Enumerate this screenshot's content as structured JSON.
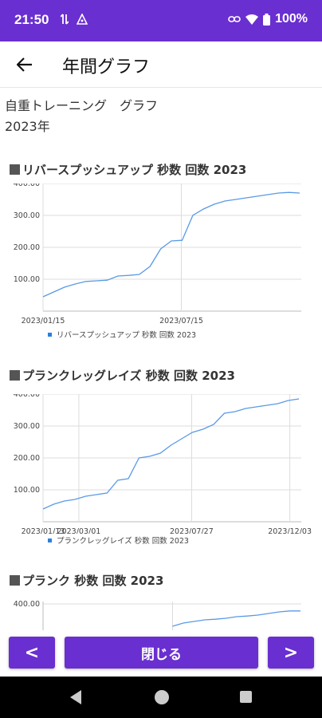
{
  "status": {
    "time": "21:50",
    "battery": "100%"
  },
  "app_bar": {
    "title": "年間グラフ"
  },
  "header": {
    "line1": "自重トレーニング　グラフ",
    "line2": "2023年"
  },
  "chart_data": [
    {
      "type": "line",
      "title": "リバースプッシュアップ 秒数 回数 2023",
      "series": [
        {
          "name": "リバースプッシュアップ 秒数 回数 2023",
          "x": [
            "2023/01/15",
            "2023/01/29",
            "2023/02/12",
            "2023/02/26",
            "2023/03/12",
            "2023/03/26",
            "2023/04/09",
            "2023/04/23",
            "2023/05/07",
            "2023/05/21",
            "2023/06/04",
            "2023/06/18",
            "2023/07/02",
            "2023/07/16",
            "2023/07/30",
            "2023/08/13",
            "2023/08/27",
            "2023/09/10",
            "2023/09/24",
            "2023/10/08",
            "2023/10/22",
            "2023/11/05",
            "2023/11/19",
            "2023/12/03",
            "2023/12/17"
          ],
          "y": [
            45,
            60,
            75,
            85,
            93,
            95,
            97,
            110,
            112,
            115,
            140,
            195,
            220,
            222,
            300,
            320,
            335,
            345,
            350,
            355,
            360,
            365,
            370,
            372,
            370
          ]
        }
      ],
      "x_tick_labels": [
        "2023/01/15",
        "2023/07/15"
      ],
      "y_tick_labels": [
        "100.00",
        "200.00",
        "300.00",
        "400.00"
      ],
      "ylim": [
        0,
        400
      ],
      "legend": "リバースプッシュアップ 秒数 回数 2023",
      "grid": true
    },
    {
      "type": "line",
      "title": "プランクレッグレイズ 秒数 回数 2023",
      "series": [
        {
          "name": "プランクレッグレイズ 秒数 回数 2023",
          "x": [
            "2023/01/13",
            "2023/01/27",
            "2023/02/10",
            "2023/02/24",
            "2023/03/10",
            "2023/03/24",
            "2023/04/07",
            "2023/04/21",
            "2023/05/05",
            "2023/05/19",
            "2023/06/02",
            "2023/06/16",
            "2023/06/30",
            "2023/07/14",
            "2023/07/28",
            "2023/08/11",
            "2023/08/25",
            "2023/09/08",
            "2023/09/22",
            "2023/10/06",
            "2023/10/20",
            "2023/11/03",
            "2023/11/17",
            "2023/12/01",
            "2023/12/15"
          ],
          "y": [
            40,
            55,
            65,
            70,
            80,
            85,
            90,
            130,
            135,
            200,
            205,
            215,
            240,
            260,
            280,
            290,
            305,
            340,
            345,
            355,
            360,
            365,
            370,
            380,
            385
          ]
        }
      ],
      "x_tick_labels": [
        "2023/01/13",
        "2023/03/01",
        "2023/07/27",
        "2023/12/03"
      ],
      "y_tick_labels": [
        "100.00",
        "200.00",
        "300.00",
        "400.00"
      ],
      "ylim": [
        0,
        400
      ],
      "legend": "プランクレッグレイズ 秒数 回数 2023",
      "grid": true
    },
    {
      "type": "line",
      "title": "プランク 秒数 回数 2023",
      "y_tick_labels": [
        "400.00"
      ],
      "ylim": [
        0,
        400
      ],
      "series": [
        {
          "name": "プランク 秒数 回数 2023",
          "x": [
            "2023/07/02",
            "2023/07/16",
            "2023/07/30",
            "2023/08/13",
            "2023/08/27",
            "2023/09/10",
            "2023/09/24",
            "2023/10/08",
            "2023/10/22",
            "2023/11/05",
            "2023/11/19",
            "2023/12/03",
            "2023/12/17"
          ],
          "y": [
            330,
            340,
            345,
            350,
            352,
            355,
            360,
            362,
            365,
            370,
            375,
            378,
            378
          ]
        }
      ]
    }
  ],
  "buttons": {
    "prev": "<",
    "close": "閉じる",
    "next": ">"
  },
  "colors": {
    "accent": "#6a2fd0",
    "line": "#5a9ae6",
    "grid": "#dcdcdc"
  }
}
